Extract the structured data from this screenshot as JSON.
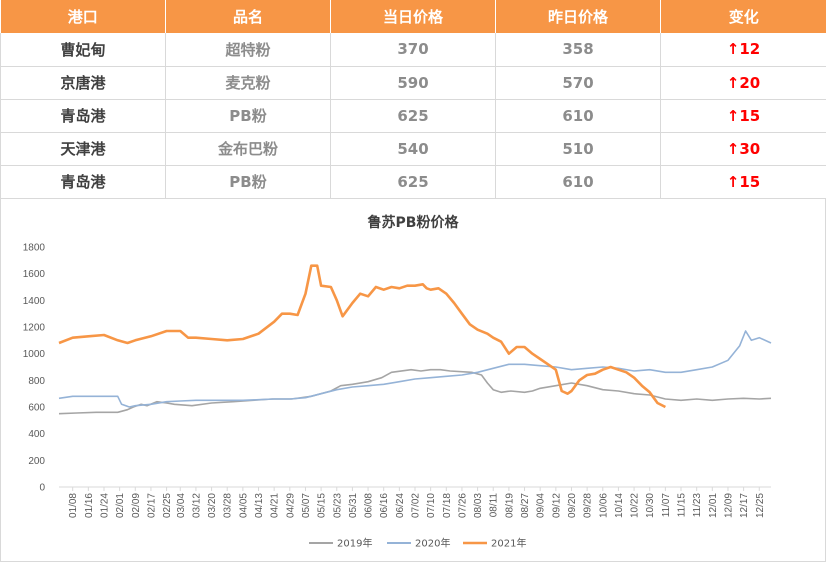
{
  "table": {
    "headers": [
      "港口",
      "品名",
      "当日价格",
      "昨日价格",
      "变化"
    ],
    "rows": [
      {
        "port": "曹妃甸",
        "product": "超特粉",
        "today": "370",
        "yesterday": "358",
        "change": "↑12"
      },
      {
        "port": "京唐港",
        "product": "麦克粉",
        "today": "590",
        "yesterday": "570",
        "change": "↑20"
      },
      {
        "port": "青岛港",
        "product": "PB粉",
        "today": "625",
        "yesterday": "610",
        "change": "↑15"
      },
      {
        "port": "天津港",
        "product": "金布巴粉",
        "today": "540",
        "yesterday": "510",
        "change": "↑30"
      },
      {
        "port": "青岛港",
        "product": "PB粉",
        "today": "625",
        "yesterday": "610",
        "change": "↑15"
      }
    ]
  },
  "colors": {
    "header_bg": "#f79646",
    "change_up": "#ff0000"
  },
  "chart_data": {
    "type": "line",
    "title": "鲁苏PB粉价格",
    "xlabel": "",
    "ylabel": "",
    "ylim": [
      0,
      1800
    ],
    "yticks": [
      0,
      200,
      400,
      600,
      800,
      1000,
      1200,
      1400,
      1600,
      1800
    ],
    "grid": false,
    "legend_position": "bottom",
    "x_tick_labels": [
      "01/08",
      "01/16",
      "01/24",
      "02/01",
      "02/09",
      "02/17",
      "02/25",
      "03/04",
      "03/12",
      "03/20",
      "03/28",
      "04/05",
      "04/13",
      "04/21",
      "04/29",
      "05/07",
      "05/15",
      "05/23",
      "05/31",
      "06/08",
      "06/16",
      "06/24",
      "07/02",
      "07/10",
      "07/18",
      "07/26",
      "08/03",
      "08/11",
      "08/19",
      "08/27",
      "09/04",
      "09/12",
      "09/20",
      "09/28",
      "10/06",
      "10/14",
      "10/22",
      "10/30",
      "11/07",
      "11/15",
      "11/23",
      "12/01",
      "12/09",
      "12/17",
      "12/25"
    ],
    "series": [
      {
        "name": "2019年",
        "color": "#a5a5a5",
        "points": [
          [
            "01/01",
            550
          ],
          [
            "01/10",
            555
          ],
          [
            "01/20",
            560
          ],
          [
            "01/31",
            560
          ],
          [
            "02/05",
            580
          ],
          [
            "02/08",
            600
          ],
          [
            "02/12",
            620
          ],
          [
            "02/15",
            610
          ],
          [
            "02/20",
            640
          ],
          [
            "02/25",
            630
          ],
          [
            "03/01",
            620
          ],
          [
            "03/10",
            610
          ],
          [
            "03/20",
            630
          ],
          [
            "03/31",
            640
          ],
          [
            "04/10",
            650
          ],
          [
            "04/20",
            660
          ],
          [
            "04/30",
            660
          ],
          [
            "05/10",
            680
          ],
          [
            "05/20",
            720
          ],
          [
            "05/25",
            760
          ],
          [
            "05/31",
            770
          ],
          [
            "06/08",
            790
          ],
          [
            "06/15",
            820
          ],
          [
            "06/20",
            860
          ],
          [
            "06/30",
            880
          ],
          [
            "07/05",
            870
          ],
          [
            "07/10",
            880
          ],
          [
            "07/15",
            880
          ],
          [
            "07/20",
            870
          ],
          [
            "07/31",
            860
          ],
          [
            "08/05",
            840
          ],
          [
            "08/08",
            780
          ],
          [
            "08/11",
            730
          ],
          [
            "08/15",
            710
          ],
          [
            "08/20",
            720
          ],
          [
            "08/27",
            710
          ],
          [
            "08/31",
            720
          ],
          [
            "09/04",
            740
          ],
          [
            "09/12",
            760
          ],
          [
            "09/20",
            780
          ],
          [
            "09/28",
            760
          ],
          [
            "10/06",
            730
          ],
          [
            "10/14",
            720
          ],
          [
            "10/22",
            700
          ],
          [
            "10/30",
            690
          ],
          [
            "11/07",
            660
          ],
          [
            "11/15",
            650
          ],
          [
            "11/23",
            660
          ],
          [
            "12/01",
            650
          ],
          [
            "12/09",
            660
          ],
          [
            "12/17",
            665
          ],
          [
            "12/25",
            660
          ],
          [
            "12/31",
            665
          ]
        ]
      },
      {
        "name": "2020年",
        "color": "#95b3d7",
        "points": [
          [
            "01/01",
            665
          ],
          [
            "01/08",
            680
          ],
          [
            "01/16",
            680
          ],
          [
            "01/24",
            680
          ],
          [
            "01/31",
            680
          ],
          [
            "02/02",
            620
          ],
          [
            "02/06",
            600
          ],
          [
            "02/09",
            610
          ],
          [
            "02/17",
            620
          ],
          [
            "02/25",
            640
          ],
          [
            "03/04",
            645
          ],
          [
            "03/12",
            650
          ],
          [
            "03/20",
            650
          ],
          [
            "03/28",
            650
          ],
          [
            "04/05",
            650
          ],
          [
            "04/13",
            655
          ],
          [
            "04/21",
            660
          ],
          [
            "04/29",
            660
          ],
          [
            "05/07",
            670
          ],
          [
            "05/15",
            700
          ],
          [
            "05/23",
            730
          ],
          [
            "05/31",
            750
          ],
          [
            "06/08",
            760
          ],
          [
            "06/16",
            770
          ],
          [
            "06/24",
            790
          ],
          [
            "07/02",
            810
          ],
          [
            "07/10",
            820
          ],
          [
            "07/18",
            830
          ],
          [
            "07/26",
            840
          ],
          [
            "08/03",
            860
          ],
          [
            "08/11",
            890
          ],
          [
            "08/19",
            920
          ],
          [
            "08/27",
            920
          ],
          [
            "09/04",
            910
          ],
          [
            "09/12",
            900
          ],
          [
            "09/20",
            880
          ],
          [
            "09/28",
            890
          ],
          [
            "10/06",
            900
          ],
          [
            "10/14",
            890
          ],
          [
            "10/22",
            870
          ],
          [
            "10/30",
            880
          ],
          [
            "11/07",
            860
          ],
          [
            "11/15",
            860
          ],
          [
            "11/23",
            880
          ],
          [
            "12/01",
            900
          ],
          [
            "12/09",
            950
          ],
          [
            "12/15",
            1060
          ],
          [
            "12/18",
            1170
          ],
          [
            "12/21",
            1100
          ],
          [
            "12/25",
            1120
          ],
          [
            "12/31",
            1080
          ]
        ]
      },
      {
        "name": "2021年",
        "color": "#f79646",
        "points": [
          [
            "01/01",
            1080
          ],
          [
            "01/08",
            1120
          ],
          [
            "01/16",
            1130
          ],
          [
            "01/24",
            1140
          ],
          [
            "01/31",
            1100
          ],
          [
            "02/05",
            1080
          ],
          [
            "02/09",
            1100
          ],
          [
            "02/17",
            1130
          ],
          [
            "02/25",
            1170
          ],
          [
            "03/04",
            1170
          ],
          [
            "03/08",
            1120
          ],
          [
            "03/12",
            1120
          ],
          [
            "03/20",
            1110
          ],
          [
            "03/28",
            1100
          ],
          [
            "04/05",
            1110
          ],
          [
            "04/13",
            1150
          ],
          [
            "04/21",
            1240
          ],
          [
            "04/25",
            1300
          ],
          [
            "04/29",
            1300
          ],
          [
            "05/03",
            1290
          ],
          [
            "05/07",
            1450
          ],
          [
            "05/10",
            1660
          ],
          [
            "05/13",
            1660
          ],
          [
            "05/15",
            1510
          ],
          [
            "05/20",
            1500
          ],
          [
            "05/23",
            1400
          ],
          [
            "05/26",
            1280
          ],
          [
            "05/31",
            1380
          ],
          [
            "06/04",
            1450
          ],
          [
            "06/08",
            1430
          ],
          [
            "06/12",
            1500
          ],
          [
            "06/16",
            1480
          ],
          [
            "06/20",
            1500
          ],
          [
            "06/24",
            1490
          ],
          [
            "06/28",
            1510
          ],
          [
            "07/02",
            1510
          ],
          [
            "07/06",
            1520
          ],
          [
            "07/08",
            1490
          ],
          [
            "07/10",
            1480
          ],
          [
            "07/14",
            1490
          ],
          [
            "07/18",
            1450
          ],
          [
            "07/22",
            1380
          ],
          [
            "07/26",
            1300
          ],
          [
            "07/30",
            1220
          ],
          [
            "08/03",
            1180
          ],
          [
            "08/08",
            1150
          ],
          [
            "08/11",
            1120
          ],
          [
            "08/15",
            1090
          ],
          [
            "08/19",
            1000
          ],
          [
            "08/23",
            1050
          ],
          [
            "08/27",
            1050
          ],
          [
            "08/31",
            1000
          ],
          [
            "09/04",
            960
          ],
          [
            "09/08",
            920
          ],
          [
            "09/12",
            880
          ],
          [
            "09/15",
            720
          ],
          [
            "09/18",
            700
          ],
          [
            "09/20",
            720
          ],
          [
            "09/24",
            800
          ],
          [
            "09/28",
            840
          ],
          [
            "10/02",
            850
          ],
          [
            "10/06",
            880
          ],
          [
            "10/10",
            900
          ],
          [
            "10/14",
            880
          ],
          [
            "10/18",
            860
          ],
          [
            "10/22",
            820
          ],
          [
            "10/26",
            760
          ],
          [
            "10/30",
            710
          ],
          [
            "11/03",
            630
          ],
          [
            "11/07",
            600
          ]
        ]
      }
    ]
  }
}
